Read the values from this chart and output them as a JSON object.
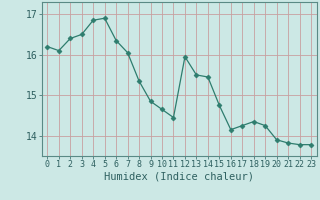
{
  "x": [
    0,
    1,
    2,
    3,
    4,
    5,
    6,
    7,
    8,
    9,
    10,
    11,
    12,
    13,
    14,
    15,
    16,
    17,
    18,
    19,
    20,
    21,
    22,
    23
  ],
  "y": [
    16.2,
    16.1,
    16.4,
    16.5,
    16.85,
    16.9,
    16.35,
    16.05,
    15.35,
    14.85,
    14.65,
    14.45,
    15.95,
    15.5,
    15.45,
    14.75,
    14.15,
    14.25,
    14.35,
    14.25,
    13.9,
    13.82,
    13.78,
    13.78
  ],
  "line_color": "#2e7d6e",
  "marker": "D",
  "marker_size": 2.5,
  "bg_color": "#cce8e5",
  "grid_color": "#c8a0a0",
  "xlabel": "Humidex (Indice chaleur)",
  "ylim": [
    13.5,
    17.3
  ],
  "yticks": [
    14,
    15,
    16,
    17
  ],
  "xlim": [
    -0.5,
    23.5
  ],
  "xticks": [
    0,
    1,
    2,
    3,
    4,
    5,
    6,
    7,
    8,
    9,
    10,
    11,
    12,
    13,
    14,
    15,
    16,
    17,
    18,
    19,
    20,
    21,
    22,
    23
  ],
  "xlabel_fontsize": 7.5,
  "tick_fontsize": 6.0,
  "ytick_fontsize": 7.0,
  "line_width": 0.9
}
